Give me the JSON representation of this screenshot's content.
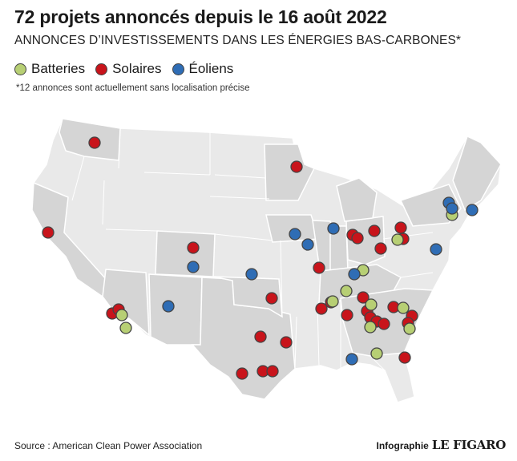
{
  "header": {
    "title": "72 projets annoncés depuis le 16 août 2022",
    "subtitle": "ANNONCES D’INVESTISSEMENTS DANS LES ÉNERGIES BAS-CARBONES*",
    "note": "*12 annonces sont actuellement sans localisation précise"
  },
  "legend": [
    {
      "key": "battery",
      "label": "Batteries",
      "color": "#b7cf74"
    },
    {
      "key": "solar",
      "label": "Solaires",
      "color": "#c8141b"
    },
    {
      "key": "wind",
      "label": "Éoliens",
      "color": "#2f6db5"
    }
  ],
  "colors": {
    "map_fill": "#d5d5d5",
    "map_fill_light": "#e9e9e9",
    "border": "#ffffff",
    "marker_outline": "#444444"
  },
  "footer": {
    "source": "Source : American Clean Power Association",
    "credit_label": "Infographie",
    "credit_brand": "LE FIGARO"
  }
}
